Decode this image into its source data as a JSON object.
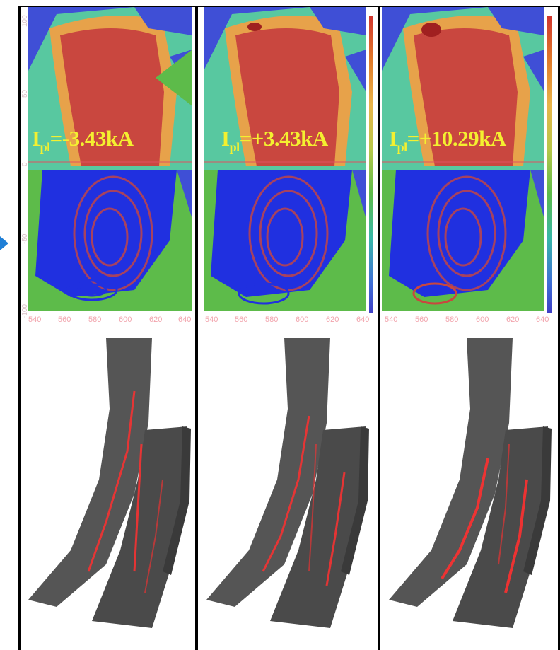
{
  "panels": [
    {
      "label_main": "I",
      "label_sub": "pl",
      "label_value": "=-3.43kA"
    },
    {
      "label_main": "I",
      "label_sub": "pl",
      "label_value": "=+3.43kA"
    },
    {
      "label_main": "I",
      "label_sub": "pl",
      "label_value": "=+10.29kA"
    }
  ],
  "x_ticks": [
    "540",
    "560",
    "580",
    "600",
    "620",
    "640"
  ],
  "y_ticks": [
    "100",
    "50",
    "0",
    "-50",
    "-100"
  ],
  "colors": {
    "background_blue": "#3f4fd6",
    "hot_red": "#c9473f",
    "label_yellow": "#f4f030",
    "tick_pink": "#f2a4ad",
    "divertor_gray": "#4a4a4a",
    "strike_red": "#ff3030",
    "arrow_blue": "#1f7fd6"
  }
}
